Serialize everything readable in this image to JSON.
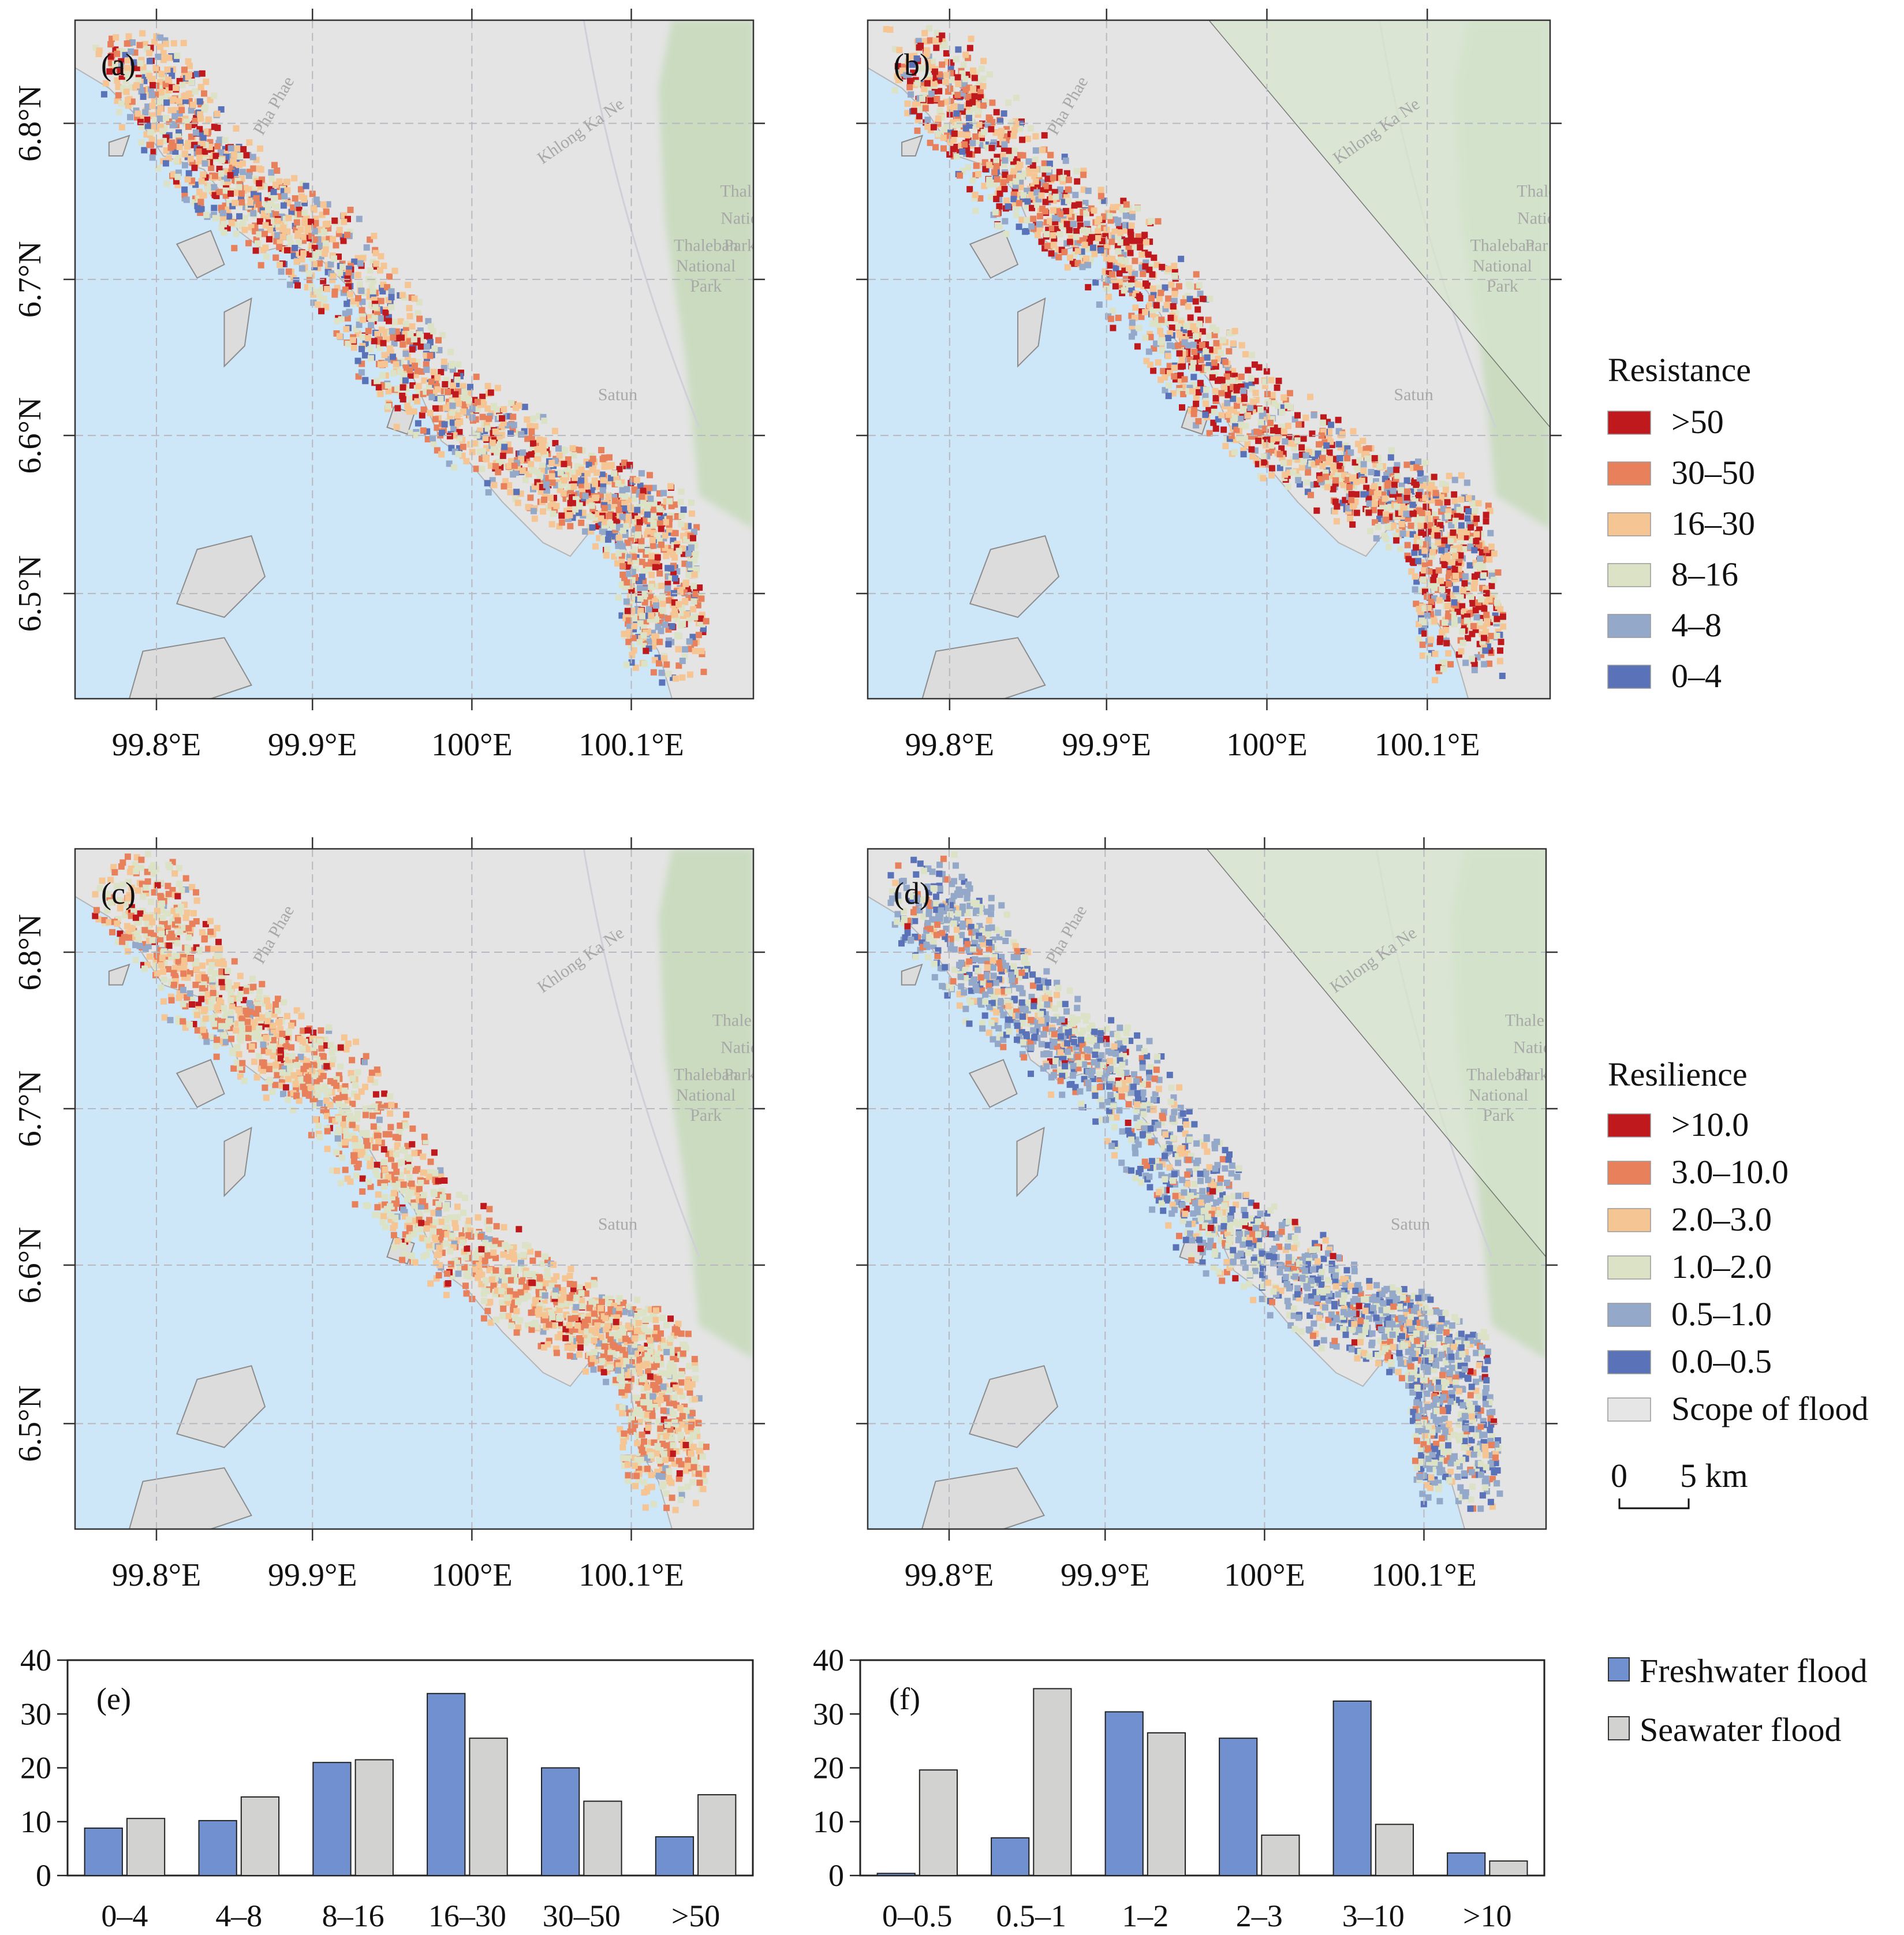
{
  "map_panels": [
    {
      "label": "(a)",
      "right_clipped": false,
      "places": [
        "Pha Phae",
        "Khlong Ka Ne",
        "Thale",
        "Natio",
        "Park",
        "Thaleban",
        "National",
        "Park",
        "Satun"
      ]
    },
    {
      "label": "(b)",
      "right_clipped": true,
      "places": [
        "Pha Phae",
        "Khlong Ka Ne",
        "Thale",
        "Natio",
        "Par",
        "Thaleban",
        "National",
        "Park",
        "Satun"
      ]
    },
    {
      "label": "(c)",
      "right_clipped": false,
      "places": [
        "Pha Phae",
        "Khlong Ka Ne",
        "Thale B",
        "Natio",
        "Park",
        "Thaleban",
        "National",
        "Park",
        "Satun"
      ]
    },
    {
      "label": "(d)",
      "right_clipped": true,
      "places": [
        "Pha Phae",
        "Khlong Ka Ne",
        "Thale B",
        "Natio",
        "Park",
        "Thaleban",
        "National",
        "Park",
        "Satun"
      ]
    }
  ],
  "axes": {
    "lon_ticks": [
      "99.8°E",
      "99.9°E",
      "100°E",
      "100.1°E"
    ],
    "lat_ticks": [
      "6.8°N",
      "6.7°N",
      "6.6°N",
      "6.5°N"
    ]
  },
  "legend_resistance": {
    "title": "Resistance",
    "items": [
      {
        "label": ">50",
        "color": "#c0191d"
      },
      {
        "label": "30–50",
        "color": "#e8805c"
      },
      {
        "label": "16–30",
        "color": "#f5c594"
      },
      {
        "label": "8–16",
        "color": "#dbe2c6"
      },
      {
        "label": "4–8",
        "color": "#94a8c9"
      },
      {
        "label": "0–4",
        "color": "#5a72b8"
      }
    ]
  },
  "legend_resilience": {
    "title": "Resilience",
    "items": [
      {
        "label": ">10.0",
        "color": "#c0191d"
      },
      {
        "label": "3.0–10.0",
        "color": "#e8805c"
      },
      {
        "label": "2.0–3.0",
        "color": "#f5c594"
      },
      {
        "label": "1.0–2.0",
        "color": "#dbe2c6"
      },
      {
        "label": "0.5–1.0",
        "color": "#94a8c9"
      },
      {
        "label": "0.0–0.5",
        "color": "#5a72b8"
      },
      {
        "label": "Scope of flood",
        "color": "#e6e6e6"
      }
    ]
  },
  "scale_bar": {
    "start": "0",
    "end": "5 km"
  },
  "bar_legend": [
    {
      "label": "Freshwater flood",
      "color": "#7090d0"
    },
    {
      "label": "Seawater flood",
      "color": "#d2d2d0"
    }
  ],
  "chart_data": [
    {
      "type": "bar",
      "label": "(e)",
      "categories": [
        "0–4",
        "4–8",
        "8–16",
        "16–30",
        "30–50",
        ">50"
      ],
      "series": [
        {
          "name": "Freshwater flood",
          "values": [
            8.8,
            10.2,
            21,
            33.8,
            20,
            7.2
          ]
        },
        {
          "name": "Seawater flood",
          "values": [
            10.6,
            14.6,
            21.5,
            25.5,
            13.8,
            15
          ]
        }
      ],
      "ylim": [
        0,
        40
      ],
      "yticks": [
        "0",
        "10",
        "20",
        "30",
        "40"
      ]
    },
    {
      "type": "bar",
      "label": "(f)",
      "categories": [
        "0–0.5",
        "0.5–1",
        "1–2",
        "2–3",
        "3–10",
        ">10"
      ],
      "series": [
        {
          "name": "Freshwater flood",
          "values": [
            0.4,
            7,
            30.4,
            25.5,
            32.4,
            4.2
          ]
        },
        {
          "name": "Seawater flood",
          "values": [
            19.6,
            34.7,
            26.5,
            7.5,
            9.5,
            2.7
          ]
        }
      ],
      "ylim": [
        0,
        40
      ],
      "yticks": [
        "0",
        "10",
        "20",
        "30",
        "40"
      ]
    }
  ]
}
